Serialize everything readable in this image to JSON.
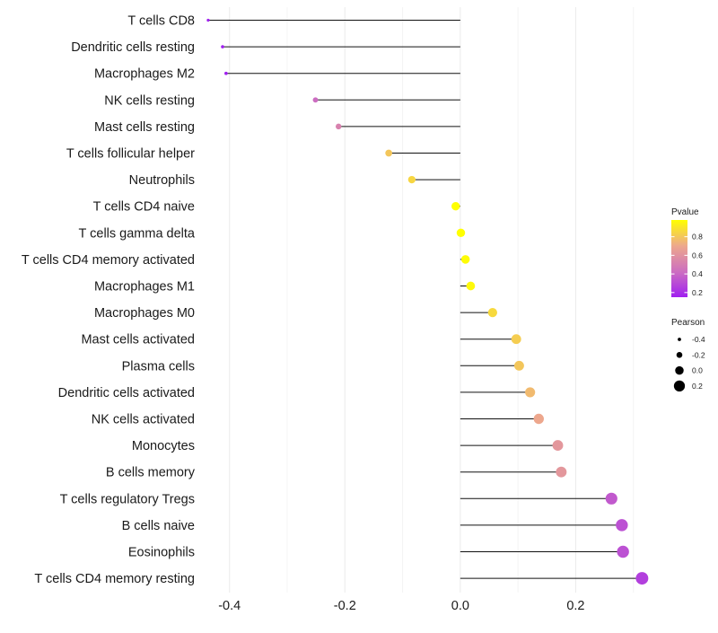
{
  "chart_data": {
    "type": "lollipop",
    "title": "",
    "xlabel": "",
    "ylabel": "",
    "xlim": [
      -0.44,
      0.33
    ],
    "xticks": [
      -0.4,
      -0.2,
      0.0,
      0.2
    ],
    "xtick_labels": [
      "-0.4",
      "-0.2",
      "0.0",
      "0.2"
    ],
    "grid": true,
    "categories": [
      "T cells CD8",
      "Dendritic cells resting",
      "Macrophages M2",
      "NK cells resting",
      "Mast cells resting",
      "T cells follicular helper",
      "Neutrophils",
      "T cells CD4 naive",
      "T cells gamma delta",
      "T cells CD4 memory activated",
      "Macrophages M1",
      "Macrophages M0",
      "Mast cells activated",
      "Plasma cells",
      "Dendritic cells activated",
      "NK cells activated",
      "Monocytes",
      "B cells memory",
      "T cells regulatory  Tregs ",
      "B cells naive",
      "Eosinophils",
      "T cells CD4 memory resting"
    ],
    "pearson": [
      -0.437,
      -0.412,
      -0.406,
      -0.251,
      -0.211,
      -0.124,
      -0.084,
      -0.008,
      0.001,
      0.009,
      0.018,
      0.056,
      0.097,
      0.102,
      0.121,
      0.136,
      0.169,
      0.175,
      0.262,
      0.28,
      0.282,
      0.315
    ],
    "pvalue": [
      0.02,
      0.05,
      0.06,
      0.42,
      0.52,
      0.8,
      0.85,
      0.98,
      0.99,
      0.97,
      0.96,
      0.86,
      0.82,
      0.8,
      0.76,
      0.7,
      0.62,
      0.62,
      0.35,
      0.32,
      0.32,
      0.26
    ],
    "legend": {
      "pvalue_title": "Pvalue",
      "pvalue_ticks": [
        0.2,
        0.4,
        0.6,
        0.8
      ],
      "pvalue_tick_labels": [
        "0.2",
        "0.4",
        "0.6",
        "0.8"
      ],
      "pvalue_range": [
        0.15,
        0.98
      ],
      "pvalue_colors": [
        "#a020f0",
        "#cd6fc0",
        "#eda88c",
        "#ffff00"
      ],
      "pearson_title": "Pearson",
      "pearson_values": [
        -0.4,
        -0.2,
        0.0,
        0.2
      ],
      "pearson_labels": [
        "-0.4",
        "-0.2",
        "0.0",
        "0.2"
      ],
      "position": "right"
    }
  }
}
